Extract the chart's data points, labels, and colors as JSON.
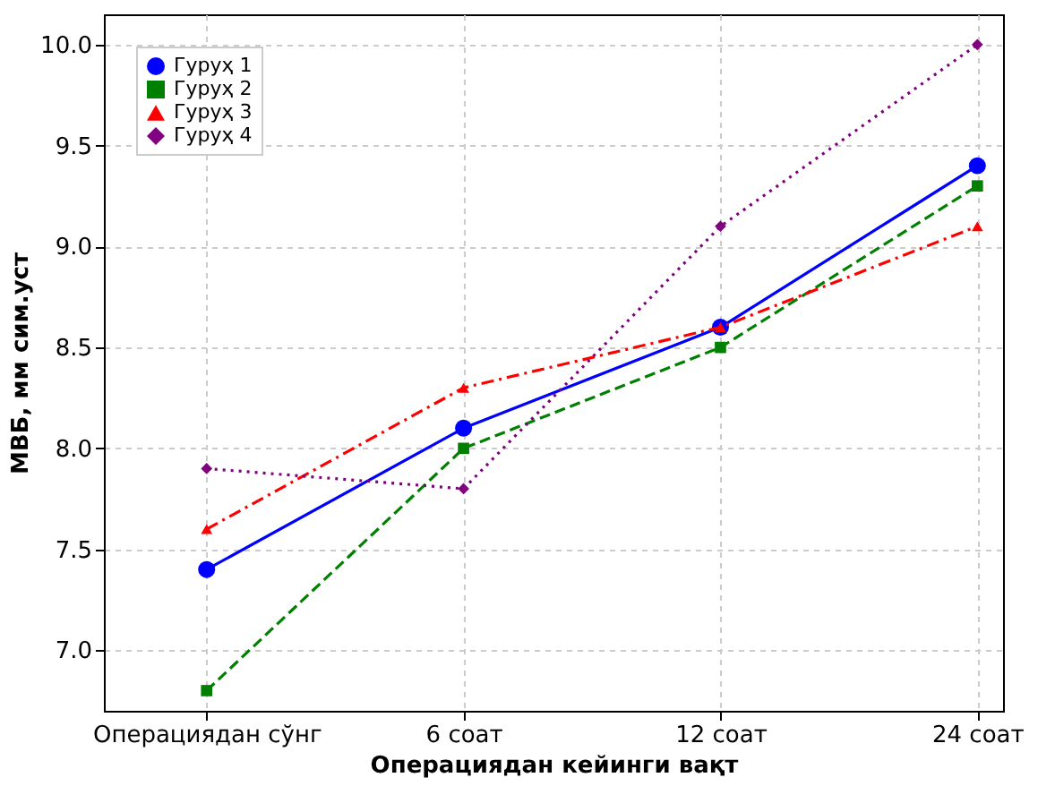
{
  "chart_data": {
    "type": "line",
    "xlabel": "Операциядан кейинги вақт",
    "ylabel": "МВБ, мм сим.уст",
    "categories": [
      "Операциядан сўнг",
      "6 соат",
      "12 соат",
      "24 соат"
    ],
    "series": [
      {
        "name": "Гуруҳ 1",
        "color": "#0000ff",
        "values": [
          7.4,
          8.1,
          8.6,
          9.4
        ],
        "marker": "circle",
        "line_style": "solid"
      },
      {
        "name": "Гуруҳ 2",
        "color": "#008000",
        "values": [
          6.8,
          8.0,
          8.5,
          9.3
        ],
        "marker": "square",
        "line_style": "dashed"
      },
      {
        "name": "Гуруҳ 3",
        "color": "#ff0000",
        "values": [
          7.6,
          8.3,
          8.6,
          9.1
        ],
        "marker": "triangle",
        "line_style": "dashdot"
      },
      {
        "name": "Гуруҳ 4",
        "color": "#800080",
        "values": [
          7.9,
          7.8,
          9.1,
          10.0
        ],
        "marker": "diamond",
        "line_style": "dotted"
      }
    ],
    "ylim": [
      6.7,
      10.15
    ],
    "yticks": [
      {
        "value": 7,
        "label": "7.0"
      },
      7.5,
      {
        "value": 8,
        "label": "8.0"
      },
      8.5,
      {
        "value": 9,
        "label": "9.0"
      },
      9.5,
      {
        "value": 10,
        "label": "10.0"
      }
    ],
    "grid": true,
    "legend": "top left"
  }
}
